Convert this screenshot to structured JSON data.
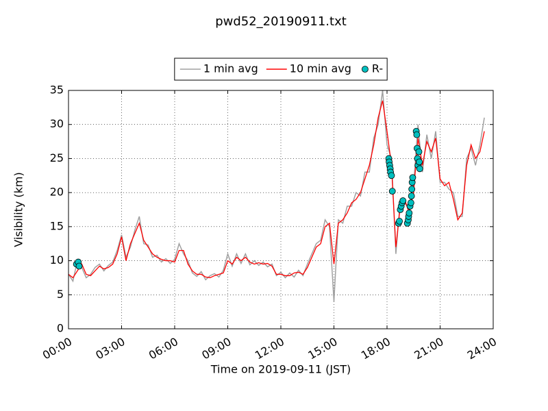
{
  "chart_data": {
    "type": "line",
    "title": "pwd52_20190911.txt",
    "xlabel": "Time on 2019-09-11 (JST)",
    "ylabel": "Visibility (km)",
    "x": [
      0,
      0.25,
      0.5,
      0.75,
      1,
      1.25,
      1.5,
      1.75,
      2,
      2.25,
      2.5,
      2.75,
      3,
      3.25,
      3.5,
      3.75,
      4,
      4.25,
      4.5,
      4.75,
      5,
      5.25,
      5.5,
      5.75,
      6,
      6.25,
      6.5,
      6.75,
      7,
      7.25,
      7.5,
      7.75,
      8,
      8.25,
      8.5,
      8.75,
      9,
      9.25,
      9.5,
      9.75,
      10,
      10.25,
      10.5,
      10.75,
      11,
      11.25,
      11.5,
      11.75,
      12,
      12.25,
      12.5,
      12.75,
      13,
      13.25,
      13.5,
      13.75,
      14,
      14.25,
      14.5,
      14.75,
      15,
      15.25,
      15.5,
      15.75,
      16,
      16.25,
      16.5,
      16.75,
      17,
      17.25,
      17.5,
      17.75,
      18,
      18.25,
      18.5,
      18.75,
      19,
      19.25,
      19.5,
      19.75,
      20,
      20.25,
      20.5,
      20.75,
      21,
      21.25,
      21.5,
      21.75,
      22,
      22.25,
      22.5,
      22.75,
      23,
      23.25,
      23.5
    ],
    "series": [
      {
        "name": "1 min avg",
        "color": "#a0a0a0",
        "style": "line",
        "values": [
          8,
          7,
          10,
          9,
          7.5,
          8,
          9,
          9.5,
          8.5,
          9.3,
          9.8,
          11.5,
          13.8,
          10.5,
          12,
          14.5,
          16.5,
          12.5,
          12.3,
          10.5,
          10.8,
          9.8,
          10.3,
          9.6,
          10.2,
          12.5,
          11,
          10,
          8.2,
          7.7,
          8.4,
          7.2,
          7.8,
          8.1,
          7.6,
          8.6,
          11,
          9.2,
          11,
          9.6,
          11,
          9.4,
          10,
          9.3,
          9.8,
          9.1,
          9.5,
          7.8,
          8.3,
          7.5,
          8.2,
          7.6,
          8.6,
          7.8,
          9.5,
          11,
          12.5,
          13,
          16,
          15,
          4,
          16,
          15.5,
          18,
          18,
          20,
          19.5,
          23,
          23,
          28,
          30,
          35,
          27,
          25,
          11,
          19,
          18.5,
          17.5,
          21,
          30,
          23,
          28.5,
          25,
          29,
          21.5,
          21.5,
          20.5,
          20,
          16.5,
          16.5,
          25,
          26.5,
          24,
          27,
          31
        ]
      },
      {
        "name": "10 min avg",
        "color": "#ff0000",
        "style": "line",
        "values": [
          8,
          7.5,
          8.5,
          9.5,
          8,
          7.8,
          8.5,
          9.2,
          8.8,
          9,
          9.5,
          11,
          13.5,
          10,
          12.5,
          14,
          15.5,
          13,
          12,
          11,
          10.5,
          10.2,
          10,
          10,
          9.8,
          11.5,
          11.5,
          9.5,
          8.5,
          8,
          8,
          7.6,
          7.5,
          7.8,
          8,
          8.2,
          10,
          9.5,
          10.5,
          10,
          10.5,
          9.8,
          9.5,
          9.7,
          9.5,
          9.6,
          9.2,
          8,
          8,
          7.8,
          7.8,
          8.2,
          8.3,
          8,
          9,
          10.5,
          12,
          12.5,
          15,
          15.5,
          9.5,
          15.5,
          16,
          17,
          18.5,
          19,
          20,
          22,
          24,
          27,
          31,
          33.5,
          29,
          24,
          12,
          18,
          19,
          17,
          20,
          28,
          24,
          27.5,
          26,
          28,
          22,
          21,
          21.5,
          19,
          16,
          17,
          24,
          27,
          25,
          26,
          29
        ]
      },
      {
        "name": "R-",
        "color": "#00bfbf",
        "style": "markers",
        "x": [
          0.45,
          0.55,
          0.6,
          18.1,
          18.12,
          18.15,
          18.18,
          18.2,
          18.25,
          18.3,
          18.65,
          18.7,
          18.75,
          18.8,
          18.85,
          18.9,
          19.15,
          19.2,
          19.22,
          19.25,
          19.3,
          19.35,
          19.38,
          19.4,
          19.42,
          19.45,
          19.65,
          19.68,
          19.7,
          19.72,
          19.75,
          19.8,
          19.82,
          19.85
        ],
        "values": [
          9.5,
          9.8,
          9.2,
          25,
          24.5,
          24,
          23.5,
          23,
          22.5,
          20.2,
          15.5,
          15.8,
          17.5,
          18,
          18.5,
          18.8,
          15.5,
          16,
          16.5,
          17,
          18,
          18.5,
          19.5,
          20.5,
          21.5,
          22.2,
          29,
          28.5,
          26.5,
          25,
          24,
          26,
          24.5,
          23.5
        ]
      }
    ],
    "xlim": [
      0,
      24
    ],
    "xticks": [
      {
        "value": 0,
        "label": "00:00"
      },
      {
        "value": 3,
        "label": "03:00"
      },
      {
        "value": 6,
        "label": "06:00"
      },
      {
        "value": 9,
        "label": "09:00"
      },
      {
        "value": 12,
        "label": "12:00"
      },
      {
        "value": 15,
        "label": "15:00"
      },
      {
        "value": 18,
        "label": "18:00"
      },
      {
        "value": 21,
        "label": "21:00"
      },
      {
        "value": 24,
        "label": "24:00"
      }
    ],
    "ylim": [
      0,
      35
    ],
    "yticks": [
      0,
      5,
      10,
      15,
      20,
      25,
      30,
      35
    ],
    "grid": true,
    "legend": "top"
  }
}
